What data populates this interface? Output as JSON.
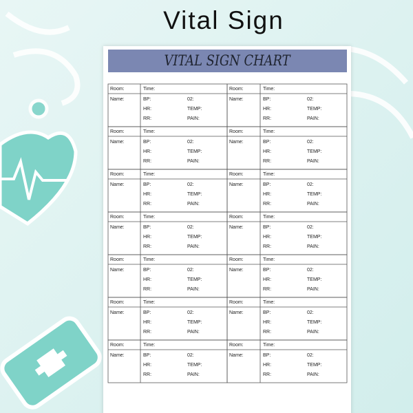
{
  "title": "Vital Sign",
  "sheet": {
    "header": "VITAL SIGN CHART",
    "blocks": [
      {
        "room": "Room:",
        "time": "Time:",
        "name": "Name:",
        "bp": "BP:",
        "o2": "02:",
        "hr": "HR:",
        "temp": "TEMP:",
        "rr": "RR:",
        "pain": "PAIN:"
      },
      {
        "room": "Room:",
        "time": "Time:",
        "name": "Name:",
        "bp": "BP:",
        "o2": "02:",
        "hr": "HR:",
        "temp": "TEMP:",
        "rr": "RR:",
        "pain": "PAIN:"
      },
      {
        "room": "Room:",
        "time": "Time:",
        "name": "Name:",
        "bp": "BP:",
        "o2": "02:",
        "hr": "HR:",
        "temp": "TEMP:",
        "rr": "RR:",
        "pain": "PAIN:"
      },
      {
        "room": "Room:",
        "time": "Time:",
        "name": "Name:",
        "bp": "BP:",
        "o2": "02:",
        "hr": "HR:",
        "temp": "TEMP:",
        "rr": "RR:",
        "pain": "PAIN:"
      },
      {
        "room": "Room:",
        "time": "Time:",
        "name": "Name:",
        "bp": "BP:",
        "o2": "02:",
        "hr": "HR:",
        "temp": "TEMP:",
        "rr": "RR:",
        "pain": "PAIN:"
      },
      {
        "room": "Room:",
        "time": "Time:",
        "name": "Name:",
        "bp": "BP:",
        "o2": "02:",
        "hr": "HR:",
        "temp": "TEMP:",
        "rr": "RR:",
        "pain": "PAIN:"
      },
      {
        "room": "Room:",
        "time": "Time:",
        "name": "Name:",
        "bp": "BP:",
        "o2": "02:",
        "hr": "HR:",
        "temp": "TEMP:",
        "rr": "RR:",
        "pain": "PAIN:"
      },
      {
        "room": "Room:",
        "time": "Time:",
        "name": "Name:",
        "bp": "BP:",
        "o2": "02:",
        "hr": "HR:",
        "temp": "TEMP:",
        "rr": "RR:",
        "pain": "PAIN:"
      },
      {
        "room": "Room:",
        "time": "Time:",
        "name": "Name:",
        "bp": "BP:",
        "o2": "02:",
        "hr": "HR:",
        "temp": "TEMP:",
        "rr": "RR:",
        "pain": "PAIN:"
      },
      {
        "room": "Room:",
        "time": "Time:",
        "name": "Name:",
        "bp": "BP:",
        "o2": "02:",
        "hr": "HR:",
        "temp": "TEMP:",
        "rr": "RR:",
        "pain": "PAIN:"
      },
      {
        "room": "Room:",
        "time": "Time:",
        "name": "Name:",
        "bp": "BP:",
        "o2": "02:",
        "hr": "HR:",
        "temp": "TEMP:",
        "rr": "RR:",
        "pain": "PAIN:"
      },
      {
        "room": "Room:",
        "time": "Time:",
        "name": "Name:",
        "bp": "BP:",
        "o2": "02:",
        "hr": "HR:",
        "temp": "TEMP:",
        "rr": "RR:",
        "pain": "PAIN:"
      },
      {
        "room": "Room:",
        "time": "Time:",
        "name": "Name:",
        "bp": "BP:",
        "o2": "02:",
        "hr": "HR:",
        "temp": "TEMP:",
        "rr": "RR:",
        "pain": "PAIN:"
      },
      {
        "room": "Room:",
        "time": "Time:",
        "name": "Name:",
        "bp": "BP:",
        "o2": "02:",
        "hr": "HR:",
        "temp": "TEMP:",
        "rr": "RR:",
        "pain": "PAIN:"
      }
    ]
  }
}
